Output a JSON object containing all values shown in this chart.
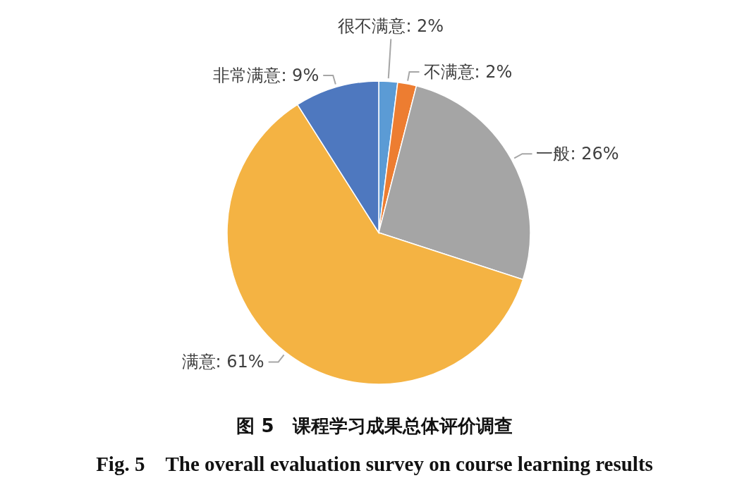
{
  "chart_data": {
    "type": "pie",
    "title": "图 5　课程学习成果总体评价调查",
    "subtitle": "Fig. 5　The overall evaluation survey on course learning results",
    "categories": [
      "很不满意",
      "不满意",
      "一般",
      "满意",
      "非常满意"
    ],
    "values": [
      2,
      2,
      26,
      61,
      9
    ],
    "colors": [
      "#5b9bd5",
      "#ed7d31",
      "#a5a5a5",
      "#f4b343",
      "#4e78bf"
    ],
    "value_labels": [
      ": 2%",
      ": 2%",
      ": 26%",
      ": 61%",
      ": 9%"
    ]
  }
}
